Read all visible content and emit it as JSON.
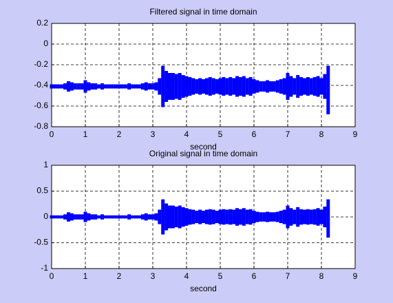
{
  "chart_data": [
    {
      "type": "band",
      "title": "Filtered signal in time domain",
      "x_label": "second",
      "x": [
        0,
        0.1,
        0.2,
        0.3,
        0.4,
        0.5,
        0.6,
        0.7,
        0.8,
        0.9,
        1,
        1.1,
        1.2,
        1.3,
        1.4,
        1.5,
        1.6,
        1.7,
        1.8,
        1.9,
        2,
        2.1,
        2.2,
        2.3,
        2.4,
        2.5,
        2.6,
        2.7,
        2.8,
        2.9,
        3,
        3.1,
        3.2,
        3.3,
        3.4,
        3.5,
        3.6,
        3.7,
        3.8,
        3.9,
        4,
        4.1,
        4.2,
        4.3,
        4.4,
        4.5,
        4.6,
        4.7,
        4.8,
        4.9,
        5,
        5.1,
        5.2,
        5.3,
        5.4,
        5.5,
        5.6,
        5.7,
        5.8,
        5.9,
        6,
        6.1,
        6.2,
        6.3,
        6.4,
        6.5,
        6.6,
        6.7,
        6.8,
        6.9,
        7,
        7.1,
        7.2,
        7.3,
        7.4,
        7.5,
        7.6,
        7.7,
        7.8,
        7.9,
        8,
        8.1,
        8.2
      ],
      "series": [
        {
          "color": "#0000ff",
          "values": [
            -0.39,
            -0.39,
            -0.39,
            -0.39,
            -0.38,
            -0.36,
            -0.37,
            -0.38,
            -0.38,
            -0.38,
            -0.35,
            -0.37,
            -0.38,
            -0.38,
            -0.39,
            -0.38,
            -0.39,
            -0.39,
            -0.39,
            -0.39,
            -0.39,
            -0.39,
            -0.39,
            -0.38,
            -0.39,
            -0.39,
            -0.39,
            -0.38,
            -0.37,
            -0.38,
            -0.38,
            -0.37,
            -0.33,
            -0.21,
            -0.26,
            -0.28,
            -0.28,
            -0.29,
            -0.28,
            -0.3,
            -0.31,
            -0.32,
            -0.33,
            -0.34,
            -0.33,
            -0.34,
            -0.33,
            -0.32,
            -0.33,
            -0.34,
            -0.33,
            -0.32,
            -0.33,
            -0.32,
            -0.33,
            -0.31,
            -0.32,
            -0.31,
            -0.33,
            -0.32,
            -0.34,
            -0.35,
            -0.36,
            -0.36,
            -0.35,
            -0.36,
            -0.36,
            -0.35,
            -0.34,
            -0.33,
            -0.28,
            -0.31,
            -0.33,
            -0.3,
            -0.32,
            -0.33,
            -0.32,
            -0.33,
            -0.32,
            -0.31,
            -0.33,
            -0.29,
            -0.21
          ]
        },
        {
          "color": "#0000ff",
          "values": [
            -0.43,
            -0.43,
            -0.43,
            -0.43,
            -0.44,
            -0.46,
            -0.45,
            -0.44,
            -0.44,
            -0.44,
            -0.47,
            -0.45,
            -0.44,
            -0.44,
            -0.43,
            -0.44,
            -0.43,
            -0.43,
            -0.43,
            -0.43,
            -0.43,
            -0.43,
            -0.43,
            -0.44,
            -0.43,
            -0.43,
            -0.43,
            -0.44,
            -0.45,
            -0.44,
            -0.44,
            -0.45,
            -0.49,
            -0.61,
            -0.56,
            -0.54,
            -0.54,
            -0.53,
            -0.54,
            -0.52,
            -0.51,
            -0.5,
            -0.49,
            -0.48,
            -0.49,
            -0.48,
            -0.49,
            -0.5,
            -0.49,
            -0.48,
            -0.49,
            -0.5,
            -0.49,
            -0.5,
            -0.49,
            -0.51,
            -0.5,
            -0.51,
            -0.49,
            -0.5,
            -0.48,
            -0.47,
            -0.46,
            -0.46,
            -0.47,
            -0.46,
            -0.46,
            -0.47,
            -0.48,
            -0.49,
            -0.54,
            -0.51,
            -0.49,
            -0.52,
            -0.5,
            -0.49,
            -0.5,
            -0.49,
            -0.5,
            -0.51,
            -0.49,
            -0.53,
            -0.68
          ]
        }
      ],
      "xlim": [
        0,
        9
      ],
      "xticks": [
        0,
        1,
        2,
        3,
        4,
        5,
        6,
        7,
        8,
        9
      ],
      "ylim": [
        -0.8,
        0.2
      ],
      "yticks": [
        -0.8,
        -0.6,
        -0.4,
        -0.2,
        0,
        0.2
      ],
      "grid": true
    },
    {
      "type": "band",
      "title": "Original signal in time domain",
      "x_label": "second",
      "x": [
        0,
        0.1,
        0.2,
        0.3,
        0.4,
        0.5,
        0.6,
        0.7,
        0.8,
        0.9,
        1,
        1.1,
        1.2,
        1.3,
        1.4,
        1.5,
        1.6,
        1.7,
        1.8,
        1.9,
        2,
        2.1,
        2.2,
        2.3,
        2.4,
        2.5,
        2.6,
        2.7,
        2.8,
        2.9,
        3,
        3.1,
        3.2,
        3.3,
        3.4,
        3.5,
        3.6,
        3.7,
        3.8,
        3.9,
        4,
        4.1,
        4.2,
        4.3,
        4.4,
        4.5,
        4.6,
        4.7,
        4.8,
        4.9,
        5,
        5.1,
        5.2,
        5.3,
        5.4,
        5.5,
        5.6,
        5.7,
        5.8,
        5.9,
        6,
        6.1,
        6.2,
        6.3,
        6.4,
        6.5,
        6.6,
        6.7,
        6.8,
        6.9,
        7,
        7.1,
        7.2,
        7.3,
        7.4,
        7.5,
        7.6,
        7.7,
        7.8,
        7.9,
        8,
        8.1,
        8.2
      ],
      "series": [
        {
          "color": "#0000ff",
          "values": [
            0.03,
            0.03,
            0.03,
            0.03,
            0.05,
            0.09,
            0.07,
            0.05,
            0.05,
            0.05,
            0.1,
            0.07,
            0.05,
            0.05,
            0.03,
            0.05,
            0.03,
            0.03,
            0.03,
            0.03,
            0.03,
            0.03,
            0.03,
            0.05,
            0.03,
            0.03,
            0.03,
            0.05,
            0.07,
            0.05,
            0.05,
            0.07,
            0.14,
            0.34,
            0.26,
            0.22,
            0.22,
            0.2,
            0.22,
            0.19,
            0.17,
            0.15,
            0.14,
            0.12,
            0.14,
            0.12,
            0.14,
            0.15,
            0.14,
            0.12,
            0.14,
            0.15,
            0.14,
            0.15,
            0.14,
            0.17,
            0.15,
            0.17,
            0.14,
            0.15,
            0.12,
            0.1,
            0.09,
            0.09,
            0.1,
            0.09,
            0.09,
            0.1,
            0.12,
            0.14,
            0.22,
            0.17,
            0.14,
            0.19,
            0.15,
            0.14,
            0.15,
            0.14,
            0.15,
            0.17,
            0.14,
            0.2,
            0.34
          ]
        },
        {
          "color": "#0000ff",
          "values": [
            -0.03,
            -0.03,
            -0.03,
            -0.03,
            -0.05,
            -0.09,
            -0.07,
            -0.05,
            -0.05,
            -0.05,
            -0.1,
            -0.07,
            -0.05,
            -0.05,
            -0.03,
            -0.05,
            -0.03,
            -0.03,
            -0.03,
            -0.03,
            -0.03,
            -0.03,
            -0.03,
            -0.05,
            -0.03,
            -0.03,
            -0.03,
            -0.05,
            -0.07,
            -0.05,
            -0.05,
            -0.07,
            -0.14,
            -0.34,
            -0.26,
            -0.22,
            -0.22,
            -0.2,
            -0.22,
            -0.19,
            -0.17,
            -0.15,
            -0.14,
            -0.12,
            -0.14,
            -0.12,
            -0.14,
            -0.15,
            -0.14,
            -0.12,
            -0.14,
            -0.15,
            -0.14,
            -0.15,
            -0.14,
            -0.17,
            -0.15,
            -0.17,
            -0.14,
            -0.15,
            -0.12,
            -0.1,
            -0.09,
            -0.09,
            -0.1,
            -0.09,
            -0.09,
            -0.1,
            -0.12,
            -0.14,
            -0.22,
            -0.17,
            -0.14,
            -0.19,
            -0.15,
            -0.14,
            -0.15,
            -0.14,
            -0.15,
            -0.17,
            -0.14,
            -0.2,
            -0.4
          ]
        }
      ],
      "xlim": [
        0,
        9
      ],
      "xticks": [
        0,
        1,
        2,
        3,
        4,
        5,
        6,
        7,
        8,
        9
      ],
      "ylim": [
        -1,
        1
      ],
      "yticks": [
        -1,
        -0.5,
        0,
        0.5,
        1
      ],
      "grid": true
    }
  ]
}
